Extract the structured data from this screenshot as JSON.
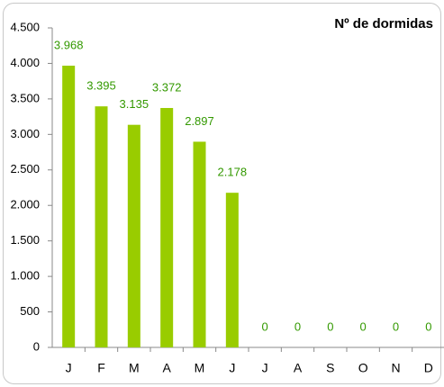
{
  "chart_data": {
    "type": "bar",
    "title": "Nº de dormidas",
    "categories": [
      "J",
      "F",
      "M",
      "A",
      "M",
      "J",
      "J",
      "A",
      "S",
      "O",
      "N",
      "D"
    ],
    "values": [
      3968,
      3395,
      3135,
      3372,
      2897,
      2178,
      0,
      0,
      0,
      0,
      0,
      0
    ],
    "value_labels": [
      "3.968",
      "3.395",
      "3.135",
      "3.372",
      "2.897",
      "2.178",
      "0",
      "0",
      "0",
      "0",
      "0",
      "0"
    ],
    "color": "#99cc00",
    "label_color": "#339900",
    "ylim": [
      0,
      4500
    ],
    "yticks": [
      0,
      500,
      {
        "value": 1000,
        "label": "1.000"
      },
      {
        "value": 1500,
        "label": "1.500"
      },
      {
        "value": 2000,
        "label": "2.000"
      },
      {
        "value": 2500,
        "label": "2.500"
      },
      {
        "value": 3000,
        "label": "3.000"
      },
      {
        "value": 3500,
        "label": "3.500"
      },
      {
        "value": 4000,
        "label": "4.000"
      },
      {
        "value": 4500,
        "label": "4.500"
      }
    ],
    "grid": false
  }
}
